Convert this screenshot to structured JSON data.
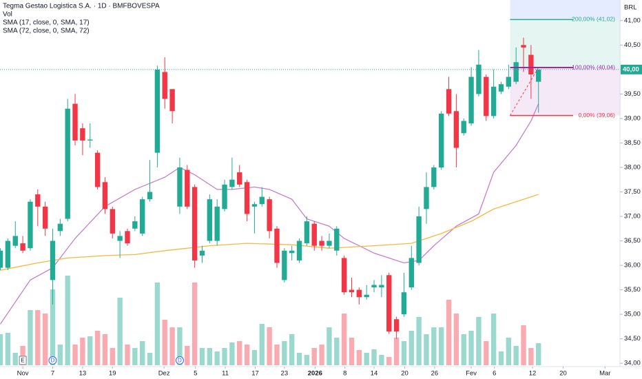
{
  "chart_data": {
    "type": "candlestick",
    "title": "Tegma Gestao Logistica S.A. · 1D · BMFBOVESPA",
    "indicators": [
      "Vol",
      "SMA (17, close, 0, SMA, 17)",
      "SMA (72, close, 0, SMA, 72)"
    ],
    "currency": "BRL",
    "colors": {
      "up": "#22ab94",
      "down": "#f23645"
    },
    "open": [
      35.95,
      35.95,
      36.4,
      36.45,
      36.35,
      37.45,
      37.2,
      35.7,
      36.7,
      36.95,
      39.3,
      38.8,
      38.55,
      38.3,
      37.7,
      37.15,
      36.5,
      36.7,
      36.75,
      36.65,
      37.35,
      38.3,
      39.95,
      39.6,
      37.2,
      37.95,
      37.6,
      36.2,
      36.5,
      36.5,
      37.15,
      37.6,
      37.9,
      37.7,
      37.2,
      37.25,
      37.35,
      36.75,
      35.7,
      36.25,
      36.1,
      36.45,
      36.85,
      36.5,
      36.4,
      36.3,
      36.15,
      35.5,
      35.5,
      35.35,
      35.55,
      35.55,
      35.8,
      34.9,
      35.0,
      35.55,
      36.05,
      37.15,
      37.6,
      38.0,
      39.6,
      39.15,
      38.7,
      38.9,
      39.5,
      39.85,
      39.05,
      39.55,
      39.65,
      39.75,
      40.5,
      40.3,
      39.75
    ],
    "high": [
      36.35,
      36.55,
      36.9,
      36.6,
      37.35,
      37.55,
      37.3,
      36.75,
      36.95,
      39.4,
      39.5,
      38.9,
      38.9,
      38.35,
      37.8,
      37.2,
      36.7,
      36.75,
      37.0,
      37.4,
      38.15,
      40.08,
      40.25,
      39.6,
      38.2,
      38.05,
      37.65,
      36.4,
      37.45,
      37.35,
      37.75,
      38.2,
      38.05,
      37.75,
      37.3,
      37.6,
      37.4,
      36.8,
      36.35,
      36.4,
      36.55,
      37.0,
      36.9,
      36.6,
      36.65,
      36.8,
      36.2,
      35.75,
      35.55,
      35.6,
      35.7,
      35.8,
      35.85,
      34.95,
      35.85,
      36.4,
      37.2,
      37.9,
      38.05,
      39.15,
      39.85,
      39.5,
      39.0,
      40.05,
      40.4,
      39.9,
      40.0,
      39.75,
      40.1,
      40.45,
      40.65,
      40.5,
      40.0
    ],
    "low": [
      35.9,
      35.9,
      36.35,
      36.25,
      36.3,
      36.8,
      36.6,
      35.2,
      36.6,
      36.9,
      38.45,
      38.25,
      38.4,
      37.55,
      37.05,
      36.55,
      36.15,
      36.4,
      36.7,
      36.6,
      37.3,
      38.0,
      39.2,
      38.9,
      37.05,
      37.15,
      35.95,
      36.05,
      36.45,
      36.4,
      37.1,
      37.55,
      37.6,
      36.9,
      36.65,
      37.2,
      36.55,
      35.95,
      35.65,
      36.1,
      36.05,
      36.4,
      36.3,
      36.3,
      36.35,
      36.2,
      35.4,
      35.35,
      35.2,
      35.3,
      35.45,
      35.35,
      34.6,
      34.5,
      34.95,
      35.5,
      36.0,
      36.85,
      37.55,
      37.95,
      39.05,
      38.0,
      38.65,
      38.85,
      39.45,
      38.95,
      39.0,
      39.5,
      39.6,
      39.7,
      39.95,
      39.4,
      39.12
    ],
    "close": [
      36.3,
      36.5,
      36.6,
      36.3,
      37.3,
      37.2,
      36.75,
      36.5,
      36.85,
      39.2,
      38.55,
      38.55,
      38.57,
      37.6,
      37.15,
      36.65,
      36.6,
      36.45,
      36.9,
      37.35,
      37.5,
      40.0,
      39.4,
      39.15,
      38.0,
      37.2,
      36.1,
      36.3,
      37.35,
      37.2,
      37.65,
      37.75,
      37.65,
      37.05,
      37.25,
      37.4,
      36.7,
      36.05,
      36.3,
      36.3,
      36.5,
      36.9,
      36.4,
      36.4,
      36.5,
      36.75,
      35.45,
      35.45,
      35.35,
      35.4,
      35.6,
      35.6,
      34.65,
      34.65,
      35.45,
      36.15,
      37.0,
      37.6,
      38.0,
      39.1,
      39.1,
      38.4,
      38.95,
      39.85,
      40.1,
      39.05,
      39.65,
      39.7,
      39.85,
      40.15,
      40.45,
      39.9,
      40.0
    ],
    "volume": [
      45,
      47,
      18,
      28,
      80,
      80,
      75,
      110,
      30,
      130,
      30,
      40,
      42,
      50,
      45,
      25,
      98,
      30,
      25,
      35,
      18,
      120,
      66,
      55,
      55,
      28,
      120,
      25,
      25,
      20,
      25,
      33,
      35,
      30,
      22,
      60,
      55,
      30,
      35,
      45,
      18,
      15,
      25,
      30,
      55,
      40,
      75,
      40,
      22,
      18,
      23,
      15,
      12,
      40,
      35,
      50,
      70,
      45,
      55,
      55,
      95,
      75,
      45,
      50,
      70,
      35,
      75,
      20,
      40,
      28,
      58,
      25,
      32
    ],
    "volume_ylim": [
      0,
      160
    ],
    "series": [
      {
        "name": "SMA (17, close, 0, SMA, 17)",
        "color": "#c77dce",
        "x": [
          0,
          4,
          7,
          10,
          14,
          18,
          22,
          24,
          26,
          29,
          31,
          34,
          36,
          39,
          41,
          44,
          46,
          48,
          50,
          52,
          54,
          56,
          58,
          61,
          64,
          66,
          69,
          71,
          72
        ],
        "values": [
          34.8,
          35.7,
          35.95,
          36.55,
          37.2,
          37.55,
          37.8,
          38.0,
          37.85,
          37.55,
          37.55,
          37.6,
          37.55,
          37.35,
          36.95,
          36.8,
          36.55,
          36.4,
          36.25,
          36.15,
          36.05,
          36.1,
          36.4,
          36.8,
          37.05,
          37.9,
          38.45,
          38.95,
          39.3
        ]
      },
      {
        "name": "SMA (72, close, 0, SMA, 72)",
        "color": "#f5b841",
        "x": [
          0,
          5,
          9,
          14,
          18,
          22,
          28,
          33,
          39,
          44,
          50,
          55,
          59,
          63,
          66,
          70,
          72
        ],
        "values": [
          35.9,
          36.05,
          36.15,
          36.2,
          36.22,
          36.3,
          36.4,
          36.45,
          36.42,
          36.35,
          36.4,
          36.45,
          36.65,
          36.9,
          37.15,
          37.35,
          37.45
        ]
      }
    ],
    "xlim": [
      -0.05,
      82.9
    ],
    "xticks": [
      {
        "value": 3,
        "label": "Nov"
      },
      {
        "value": 7,
        "label": "7"
      },
      {
        "value": 11,
        "label": "13"
      },
      {
        "value": 15,
        "label": "19"
      },
      {
        "value": 21.9,
        "label": "Dez"
      },
      {
        "value": 26.1,
        "label": "5"
      },
      {
        "value": 30.1,
        "label": "11"
      },
      {
        "value": 34.1,
        "label": "17"
      },
      {
        "value": 38,
        "label": "23"
      },
      {
        "value": 42.1,
        "label": "2026"
      },
      {
        "value": 46.1,
        "label": "8"
      },
      {
        "value": 50,
        "label": "14"
      },
      {
        "value": 54.1,
        "label": "20"
      },
      {
        "value": 58.1,
        "label": "26"
      },
      {
        "value": 63,
        "label": "Fev"
      },
      {
        "value": 66.1,
        "label": "6"
      },
      {
        "value": 71.2,
        "label": "12"
      },
      {
        "value": 75.3,
        "label": "20"
      },
      {
        "value": 80.9,
        "label": "Mar"
      }
    ],
    "ylim": [
      33.96,
      41.42
    ],
    "yticks": [
      {
        "value": 34,
        "label": "34,00"
      },
      {
        "value": 34.5,
        "label": "34,50"
      },
      {
        "value": 35,
        "label": "35,00"
      },
      {
        "value": 35.5,
        "label": "35,50"
      },
      {
        "value": 36,
        "label": "36,00"
      },
      {
        "value": 36.5,
        "label": "36,50"
      },
      {
        "value": 37,
        "label": "37,00"
      },
      {
        "value": 37.5,
        "label": "37,50"
      },
      {
        "value": 38,
        "label": "38,00"
      },
      {
        "value": 38.5,
        "label": "38,50"
      },
      {
        "value": 39,
        "label": "39,00"
      },
      {
        "value": 39.5,
        "label": "39,50"
      },
      {
        "value": 40,
        "label": "40,00"
      },
      {
        "value": 40.5,
        "label": "40,50"
      },
      {
        "value": 41,
        "label": "41,00"
      }
    ],
    "last_price": {
      "value": 40.0,
      "label": "40,00"
    },
    "fib": {
      "x_range": [
        68.2,
        83
      ],
      "levels": [
        {
          "value": 41.02,
          "label": "200,00% (41,02)",
          "color": "#22ab94"
        },
        {
          "value": 40.04,
          "label": "100,00% (40,04)",
          "color": "#9c27b0"
        },
        {
          "value": 39.06,
          "label": "0,00% (39,06)",
          "color": "#f23645"
        }
      ]
    },
    "events": [
      {
        "index": 3,
        "label": "E"
      },
      {
        "index": 7,
        "label": "D"
      },
      {
        "index": 24,
        "label": "D"
      }
    ]
  }
}
